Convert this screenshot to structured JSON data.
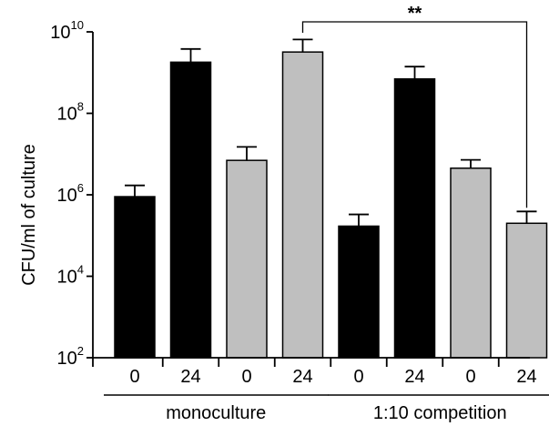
{
  "chart_data": {
    "type": "bar",
    "ylabel": "CFU/ml of culture",
    "yscale": "log",
    "ylim": [
      100,
      10000000000
    ],
    "y_ticks": [
      {
        "value": 100,
        "base": "10",
        "exp": "2"
      },
      {
        "value": 10000,
        "base": "10",
        "exp": "4"
      },
      {
        "value": 1000000,
        "base": "10",
        "exp": "6"
      },
      {
        "value": 100000000,
        "base": "10",
        "exp": "8"
      },
      {
        "value": 10000000000,
        "base": "10",
        "exp": "10"
      }
    ],
    "categories": [
      "0",
      "24",
      "0",
      "24",
      "0",
      "24",
      "0",
      "24"
    ],
    "bars": [
      {
        "label": "0",
        "value": 900000,
        "error_upper": 1700000,
        "color": "#000000"
      },
      {
        "label": "24",
        "value": 1800000000,
        "error_upper": 3800000000,
        "color": "#000000"
      },
      {
        "label": "0",
        "value": 7000000,
        "error_upper": 15000000,
        "color": "#bfbfbf"
      },
      {
        "label": "24",
        "value": 3200000000,
        "error_upper": 6500000000,
        "color": "#bfbfbf"
      },
      {
        "label": "0",
        "value": 170000,
        "error_upper": 330000,
        "color": "#000000"
      },
      {
        "label": "24",
        "value": 700000000,
        "error_upper": 1400000000,
        "color": "#000000"
      },
      {
        "label": "0",
        "value": 4500000,
        "error_upper": 7200000,
        "color": "#bfbfbf"
      },
      {
        "label": "24",
        "value": 200000,
        "error_upper": 390000,
        "color": "#bfbfbf"
      }
    ],
    "groups": [
      {
        "label": "monoculture",
        "bars": [
          0,
          1,
          2,
          3
        ]
      },
      {
        "label": "1:10 competition",
        "bars": [
          4,
          5,
          6,
          7
        ]
      }
    ],
    "significance": {
      "from_bar": 3,
      "to_bar": 7,
      "text": "**"
    }
  }
}
